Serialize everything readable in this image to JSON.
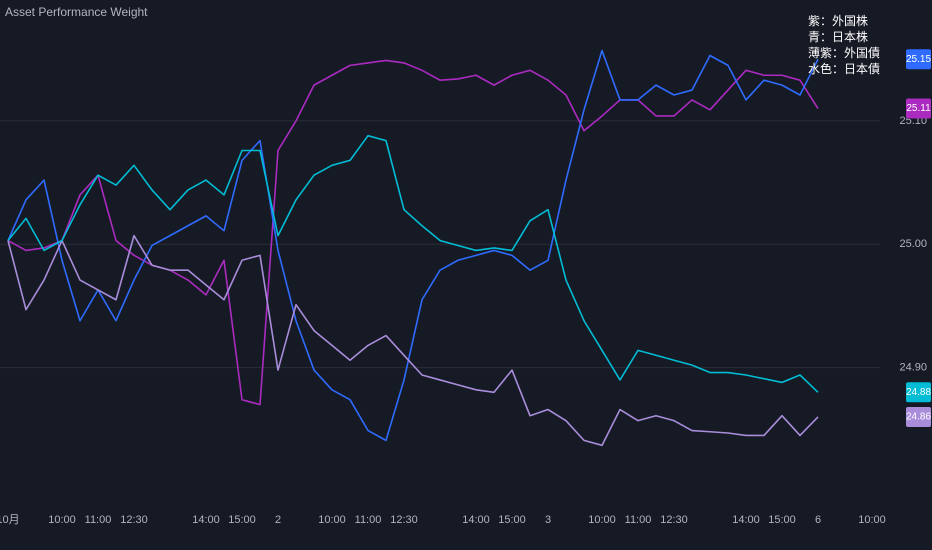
{
  "chart_data": {
    "type": "line",
    "title": "Asset Performance Weight",
    "categories": [
      "10月",
      null,
      null,
      "10:00",
      null,
      "11:00",
      null,
      "12:30",
      null,
      null,
      null,
      "14:00",
      null,
      "15:00",
      null,
      "2",
      null,
      null,
      "10:00",
      null,
      "11:00",
      null,
      "12:30",
      null,
      null,
      null,
      "14:00",
      null,
      "15:00",
      null,
      "3",
      null,
      null,
      "10:00",
      null,
      "11:00",
      null,
      "12:30",
      null,
      null,
      null,
      "14:00",
      null,
      "15:00",
      null,
      "6",
      null,
      null,
      "10:00"
    ],
    "series": [
      {
        "name": "紫：外国株",
        "color": "#ab2bc0",
        "values": [
          25.003,
          24.995,
          24.997,
          25.003,
          25.04,
          25.056,
          25.003,
          24.991,
          24.983,
          24.979,
          24.971,
          24.959,
          24.987,
          24.874,
          24.87,
          25.076,
          25.1,
          25.129,
          25.137,
          25.145,
          25.147,
          25.149,
          25.147,
          25.141,
          25.133,
          25.134,
          25.137,
          25.129,
          25.137,
          25.141,
          25.133,
          25.121,
          25.092,
          25.104,
          25.117,
          25.117,
          25.104,
          25.104,
          25.117,
          25.109,
          25.125,
          25.141,
          25.137,
          25.137,
          25.133,
          25.11,
          null,
          null,
          null
        ]
      },
      {
        "name": "青：日本株",
        "color": "#2f6bff",
        "values": [
          25.003,
          25.036,
          25.052,
          24.987,
          24.938,
          24.963,
          24.938,
          24.971,
          24.999,
          25.007,
          25.015,
          25.023,
          25.011,
          25.068,
          25.084,
          24.995,
          24.938,
          24.898,
          24.882,
          24.874,
          24.849,
          24.841,
          24.89,
          24.955,
          24.979,
          24.987,
          24.991,
          24.995,
          24.991,
          24.979,
          24.987,
          25.052,
          25.109,
          25.157,
          25.117,
          25.117,
          25.129,
          25.121,
          25.125,
          25.153,
          25.145,
          25.117,
          25.133,
          25.129,
          25.121,
          25.15,
          null,
          null,
          null
        ]
      },
      {
        "name": "薄紫：外国債",
        "color": "#a98ddb",
        "values": [
          25.003,
          24.947,
          24.971,
          25.003,
          24.971,
          24.963,
          24.955,
          25.007,
          24.983,
          24.979,
          24.979,
          24.967,
          24.955,
          24.987,
          24.991,
          24.898,
          24.951,
          24.93,
          24.918,
          24.906,
          24.918,
          24.926,
          24.91,
          24.894,
          24.89,
          24.886,
          24.882,
          24.88,
          24.898,
          24.861,
          24.866,
          24.857,
          24.841,
          24.837,
          24.866,
          24.857,
          24.861,
          24.857,
          24.849,
          24.848,
          24.847,
          24.845,
          24.845,
          24.861,
          24.845,
          24.86,
          null,
          null,
          null
        ]
      },
      {
        "name": "水色：日本債",
        "color": "#00bcd4",
        "values": [
          25.003,
          25.021,
          24.995,
          25.003,
          25.032,
          25.056,
          25.048,
          25.064,
          25.044,
          25.028,
          25.044,
          25.052,
          25.04,
          25.076,
          25.076,
          25.007,
          25.036,
          25.056,
          25.064,
          25.068,
          25.088,
          25.084,
          25.028,
          25.015,
          25.003,
          24.999,
          24.995,
          24.997,
          24.995,
          25.019,
          25.028,
          24.971,
          24.938,
          24.914,
          24.89,
          24.914,
          24.91,
          24.906,
          24.902,
          24.896,
          24.896,
          24.894,
          24.891,
          24.888,
          24.894,
          24.88,
          null,
          null,
          null
        ]
      }
    ],
    "ylim": [
      24.817,
      25.198
    ],
    "yticks": [
      {
        "value": 24.9,
        "label": "24.90"
      },
      {
        "value": 25,
        "label": "25.00"
      },
      {
        "value": 25.1,
        "label": "25.10"
      }
    ],
    "grid": true
  }
}
